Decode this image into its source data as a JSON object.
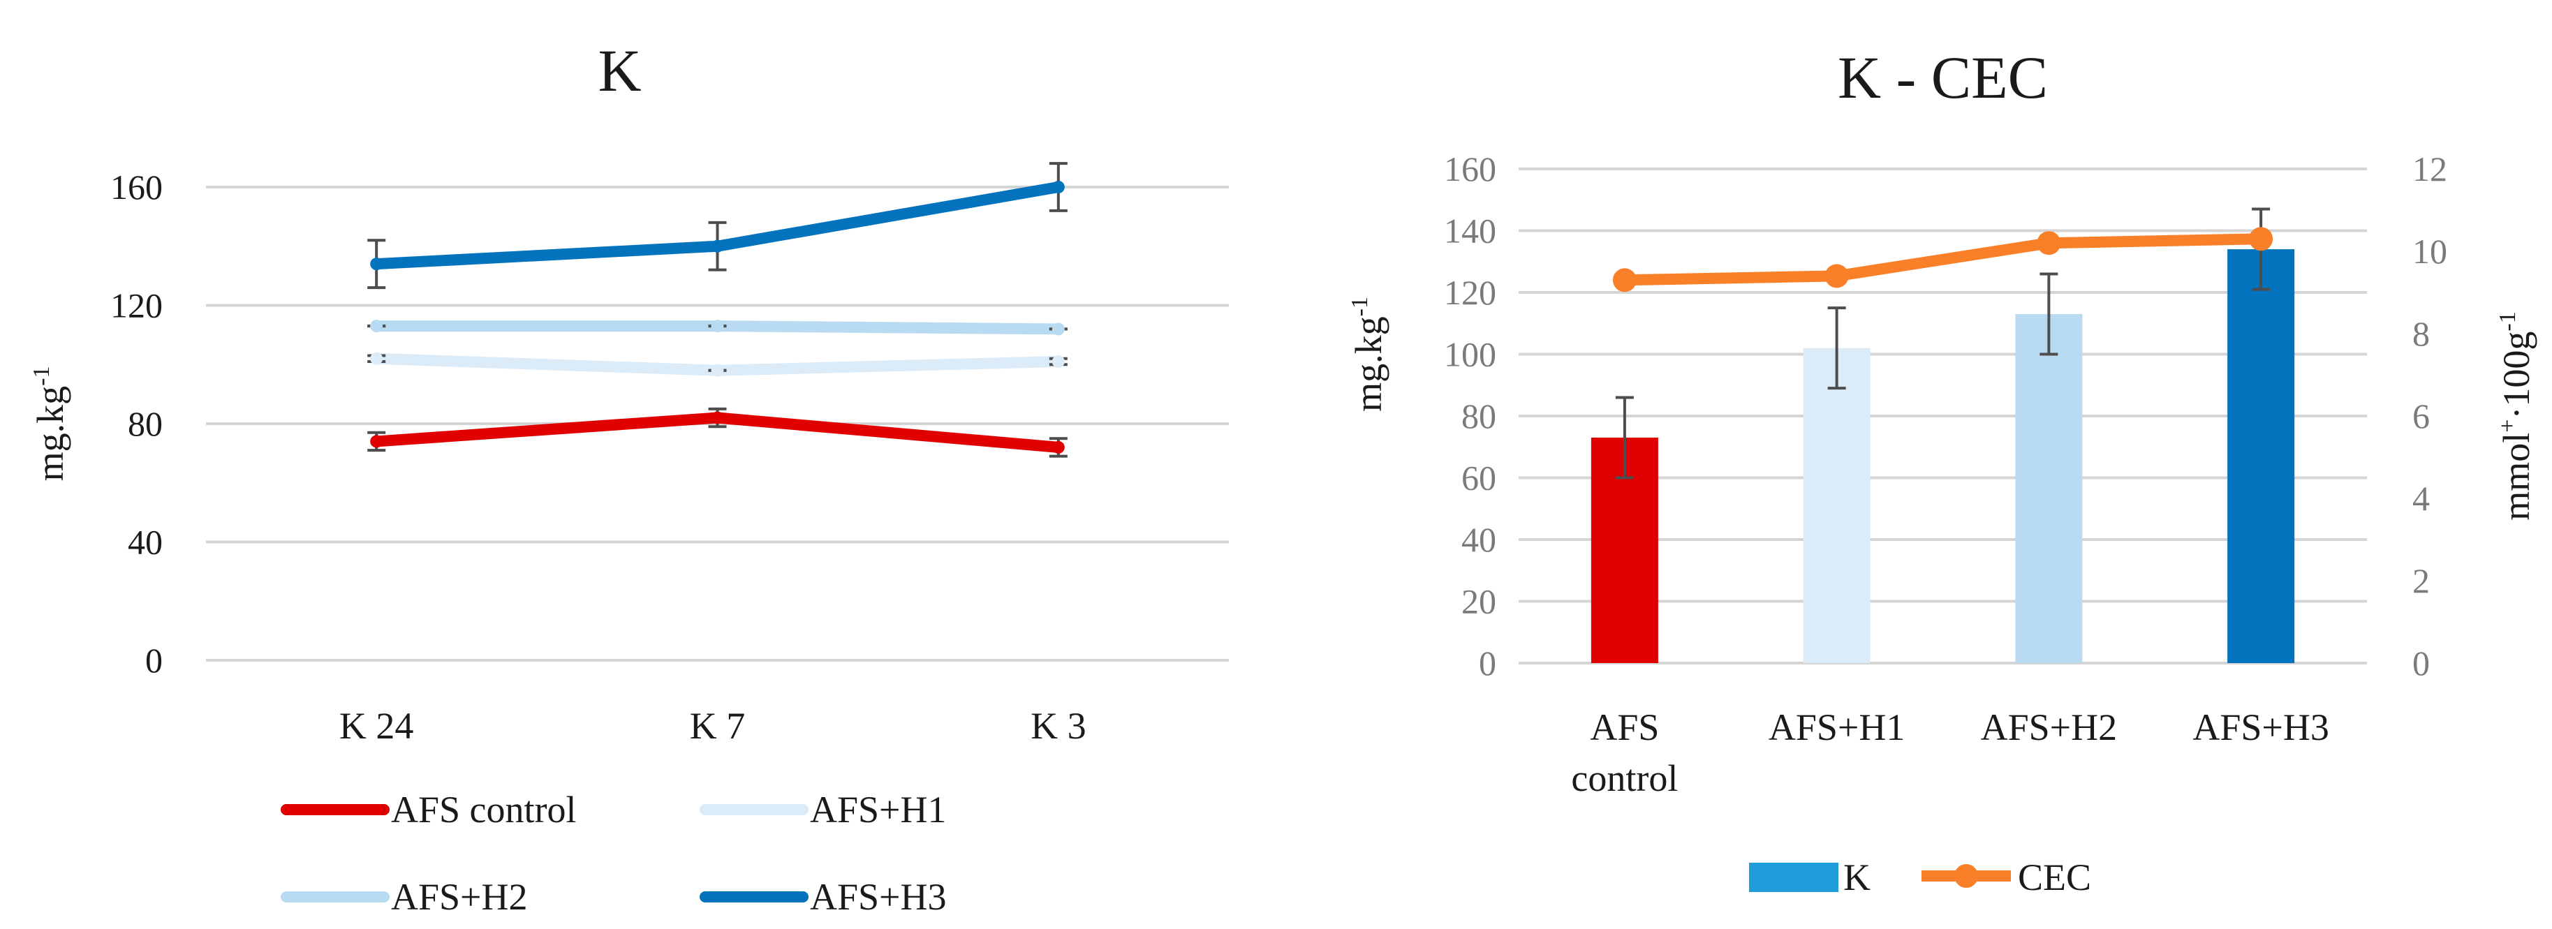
{
  "chart_data": [
    {
      "type": "line",
      "title": "K",
      "ylabel": "mg.kg",
      "ylabel_sup": "-1",
      "ylim": [
        0,
        160
      ],
      "yticks": [
        0,
        40,
        80,
        120,
        160
      ],
      "categories": [
        "K 24",
        "K 7",
        "K 3"
      ],
      "series": [
        {
          "name": "AFS control",
          "color": "#e00000",
          "values": [
            74,
            82,
            72
          ],
          "errors": [
            3,
            3,
            3
          ]
        },
        {
          "name": "AFS+H1",
          "color": "#dcebf8",
          "values": [
            102,
            98,
            101
          ],
          "errors": [
            1,
            0,
            1
          ]
        },
        {
          "name": "AFS+H2",
          "color": "#b9dbf1",
          "values": [
            113,
            113,
            112
          ],
          "errors": [
            0,
            0,
            0
          ]
        },
        {
          "name": "AFS+H3",
          "color": "#0473bd",
          "values": [
            134,
            140,
            160
          ],
          "errors": [
            8,
            8,
            8
          ]
        }
      ],
      "legend": "bottom"
    },
    {
      "type": "bar",
      "title": "K - CEC",
      "ylabel": "mg.kg",
      "ylabel_sup": "-1",
      "ylim": [
        0,
        160
      ],
      "yticks": [
        0,
        20,
        40,
        60,
        80,
        100,
        120,
        140,
        160
      ],
      "y2label_main": "mmol",
      "y2label_sup1": "+",
      "y2label_mid": "·100g",
      "y2label_sup2": "-1",
      "y2lim": [
        0,
        12
      ],
      "y2ticks": [
        0,
        2,
        4,
        6,
        8,
        10,
        12
      ],
      "categories": [
        {
          "line1": "AFS",
          "line2": "control"
        },
        {
          "line1": "AFS+H1",
          "line2": ""
        },
        {
          "line1": "AFS+H2",
          "line2": ""
        },
        {
          "line1": "AFS+H3",
          "line2": ""
        }
      ],
      "bars": {
        "name": "K",
        "legend_color": "#1f9cdc",
        "values": [
          73,
          102,
          113,
          134
        ],
        "errors": [
          13,
          13,
          13,
          13
        ],
        "colors": [
          "#e00000",
          "#dcebf8",
          "#b9dbf1",
          "#0473bd"
        ]
      },
      "line": {
        "name": "CEC",
        "color": "#f98028",
        "axis": "secondary",
        "values": [
          9.3,
          9.4,
          10.2,
          10.3
        ]
      },
      "legend": "bottom"
    }
  ]
}
